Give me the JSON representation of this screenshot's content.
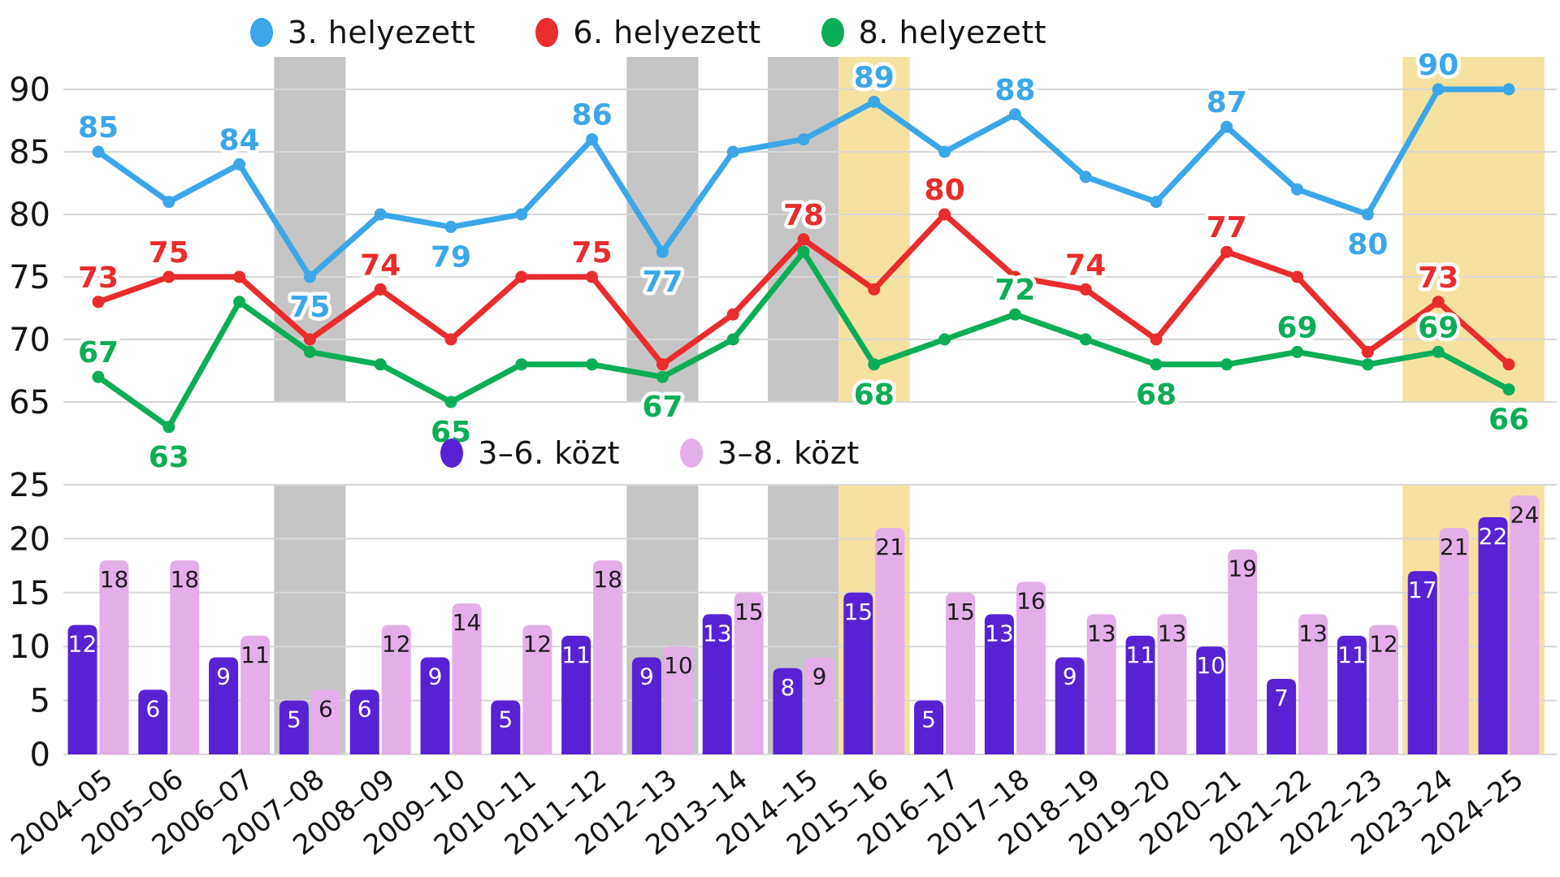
{
  "page": {
    "background": "#ffffff"
  },
  "colors": {
    "line_3rd": "#3BA7E8",
    "line_6th": "#E92C2C",
    "line_8th": "#0CAD57",
    "bar_3_6": "#5722D4",
    "bar_3_8": "#E4AFE8",
    "band_gray": "#C5C5C5",
    "band_yellow": "#F6E2A0",
    "gridline": "#D8D8D8",
    "axis_text": "#141414"
  },
  "top_legend": {
    "items": [
      {
        "label": "3. helyezett",
        "color": "#3BA7E8"
      },
      {
        "label": "6. helyezett",
        "color": "#E92C2C"
      },
      {
        "label": "8. helyezett",
        "color": "#0CAD57"
      }
    ]
  },
  "bottom_legend": {
    "items": [
      {
        "label": "3–6. közt",
        "color": "#5722D4"
      },
      {
        "label": "3–8. közt",
        "color": "#E4AFE8"
      }
    ]
  },
  "categories": [
    "2004–05",
    "2005–06",
    "2006–07",
    "2007–08",
    "2008–09",
    "2009–10",
    "2010–11",
    "2011–12",
    "2012–13",
    "2013–14",
    "2014–15",
    "2015–16",
    "2016–17",
    "2017–18",
    "2018–19",
    "2019–20",
    "2020–21",
    "2021–22",
    "2022–23",
    "2023–24",
    "2024–25"
  ],
  "highlight_bands": [
    {
      "category": "2007–08",
      "color": "#C5C5C5",
      "kind": "gray"
    },
    {
      "category": "2012–13",
      "color": "#C5C5C5",
      "kind": "gray"
    },
    {
      "category": "2014–15",
      "color": "#C5C5C5",
      "kind": "gray"
    },
    {
      "category": "2015–16",
      "color": "#F6E2A0",
      "kind": "yellow"
    },
    {
      "category_start": "2023–24",
      "category_end": "2024–25",
      "color": "#F6E2A0",
      "kind": "yellow"
    }
  ],
  "chart_data": [
    {
      "type": "line",
      "title": "",
      "xlabel": "",
      "ylabel": "",
      "grid": true,
      "legend_position": "top-center",
      "ylim": [
        63,
        92
      ],
      "yticks": [
        90,
        85,
        80,
        75,
        70,
        65
      ],
      "series": [
        {
          "name": "3. helyezett",
          "color": "#3BA7E8",
          "values": [
            85,
            81,
            84,
            75,
            80,
            79,
            80,
            86,
            77,
            85,
            86,
            89,
            85,
            88,
            83,
            81,
            87,
            82,
            80,
            90,
            90
          ],
          "point_labels": [
            {
              "index": 0,
              "pos": "above"
            },
            {
              "index": 2,
              "pos": "above"
            },
            {
              "index": 3,
              "pos": "below"
            },
            {
              "index": 5,
              "pos": "below"
            },
            {
              "index": 7,
              "pos": "above"
            },
            {
              "index": 8,
              "pos": "below"
            },
            {
              "index": 11,
              "pos": "above"
            },
            {
              "index": 13,
              "pos": "above"
            },
            {
              "index": 16,
              "pos": "above"
            },
            {
              "index": 18,
              "pos": "below"
            },
            {
              "index": 19,
              "pos": "above"
            }
          ]
        },
        {
          "name": "6. helyezett",
          "color": "#E92C2C",
          "values": [
            73,
            75,
            75,
            70,
            74,
            70,
            75,
            75,
            68,
            72,
            78,
            74,
            80,
            75,
            74,
            70,
            77,
            75,
            69,
            73,
            68
          ],
          "point_labels": [
            {
              "index": 0,
              "pos": "above"
            },
            {
              "index": 1,
              "pos": "above"
            },
            {
              "index": 4,
              "pos": "above"
            },
            {
              "index": 7,
              "pos": "above"
            },
            {
              "index": 10,
              "pos": "above"
            },
            {
              "index": 12,
              "pos": "above"
            },
            {
              "index": 14,
              "pos": "above"
            },
            {
              "index": 16,
              "pos": "above"
            },
            {
              "index": 19,
              "pos": "above"
            }
          ]
        },
        {
          "name": "8. helyezett",
          "color": "#0CAD57",
          "values": [
            67,
            63,
            73,
            69,
            68,
            65,
            68,
            68,
            67,
            70,
            77,
            68,
            70,
            72,
            70,
            68,
            68,
            69,
            68,
            69,
            66
          ],
          "point_labels": [
            {
              "index": 0,
              "pos": "above"
            },
            {
              "index": 1,
              "pos": "below"
            },
            {
              "index": 5,
              "pos": "below"
            },
            {
              "index": 8,
              "pos": "below"
            },
            {
              "index": 11,
              "pos": "below"
            },
            {
              "index": 13,
              "pos": "above"
            },
            {
              "index": 15,
              "pos": "below"
            },
            {
              "index": 17,
              "pos": "above"
            },
            {
              "index": 19,
              "pos": "above"
            },
            {
              "index": 20,
              "pos": "below"
            }
          ]
        }
      ]
    },
    {
      "type": "bar",
      "title": "",
      "xlabel": "",
      "ylabel": "",
      "grid": true,
      "legend_position": "top-center",
      "ylim": [
        0,
        25
      ],
      "yticks": [
        25,
        20,
        15,
        10,
        5,
        0
      ],
      "series": [
        {
          "name": "3–6. közt",
          "color": "#5722D4",
          "label_color": "#ffffff",
          "values": [
            12,
            6,
            9,
            5,
            6,
            9,
            5,
            11,
            9,
            13,
            8,
            15,
            5,
            13,
            9,
            11,
            10,
            7,
            11,
            17,
            22
          ]
        },
        {
          "name": "3–8. közt",
          "color": "#E4AFE8",
          "label_color": "#1d1d1d",
          "values": [
            18,
            18,
            11,
            6,
            12,
            14,
            12,
            18,
            10,
            15,
            9,
            21,
            15,
            16,
            13,
            13,
            19,
            13,
            12,
            21,
            24
          ]
        }
      ]
    }
  ]
}
